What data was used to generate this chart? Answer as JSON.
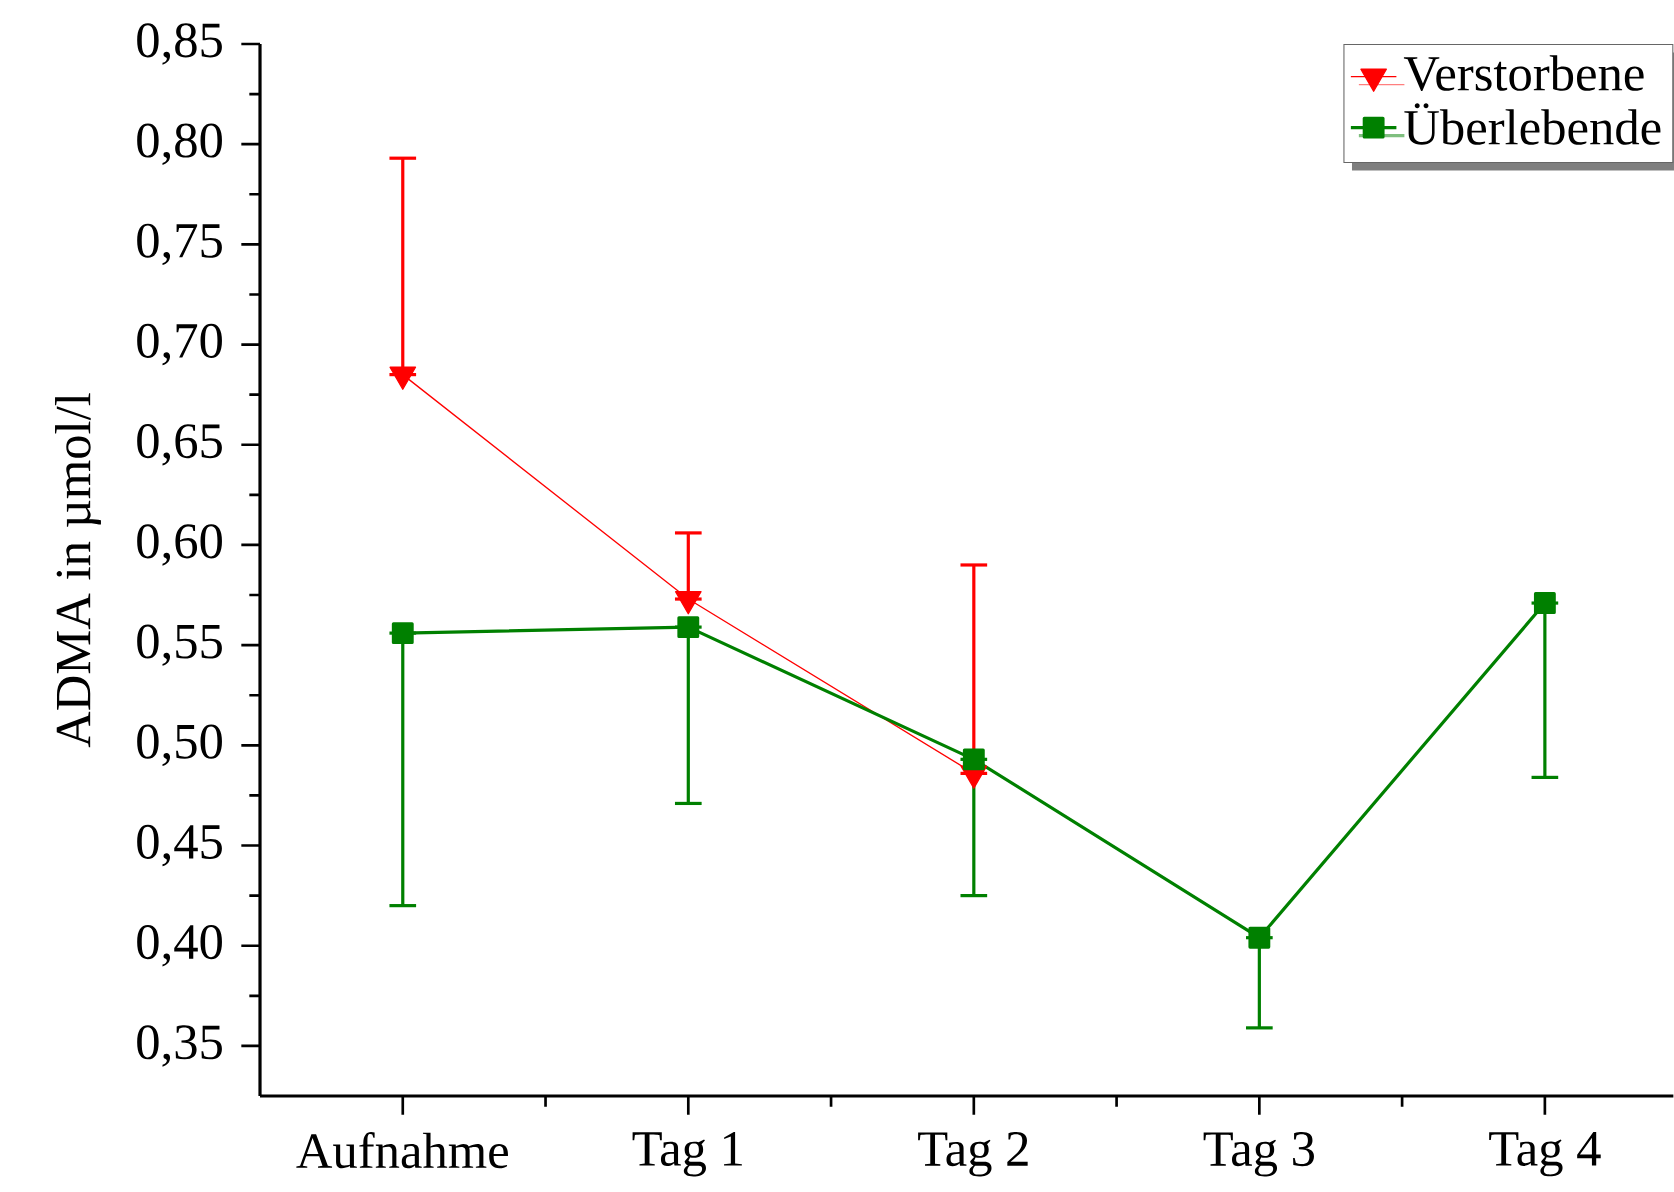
{
  "chart_data": {
    "type": "line",
    "ylabel": "ADMA in µmol/l",
    "categories": [
      "Aufnahme",
      "Tag 1",
      "Tag 2",
      "Tag 3",
      "Tag 4"
    ],
    "ylim": [
      0.325,
      0.85
    ],
    "yticks": [
      {
        "value": 0.35,
        "label": "0,35"
      },
      {
        "value": 0.4,
        "label": "0,40"
      },
      {
        "value": 0.45,
        "label": "0,45"
      },
      {
        "value": 0.5,
        "label": "0,50"
      },
      {
        "value": 0.55,
        "label": "0,55"
      },
      {
        "value": 0.6,
        "label": "0,60"
      },
      {
        "value": 0.65,
        "label": "0,65"
      },
      {
        "value": 0.7,
        "label": "0,70"
      },
      {
        "value": 0.75,
        "label": "0,75"
      },
      {
        "value": 0.8,
        "label": "0,80"
      },
      {
        "value": 0.85,
        "label": "0,85"
      }
    ],
    "legend": "top right",
    "grid": false,
    "series": [
      {
        "name": "Verstorbene",
        "color": "#ff0000",
        "marker": "triangle",
        "values": [
          0.685,
          0.573,
          0.486,
          null,
          null
        ],
        "errors": [
          [
            0.685,
            0.793
          ],
          [
            0.573,
            0.606
          ],
          [
            0.486,
            0.59
          ],
          null,
          null
        ]
      },
      {
        "name": "Überlebende",
        "color": "#008000",
        "marker": "square",
        "values": [
          0.556,
          0.559,
          0.493,
          0.404,
          0.571
        ],
        "errors": [
          [
            0.42,
            0.556
          ],
          [
            0.471,
            0.559
          ],
          [
            0.425,
            0.493
          ],
          [
            0.359,
            0.404
          ],
          [
            0.484,
            0.571
          ]
        ]
      }
    ]
  }
}
